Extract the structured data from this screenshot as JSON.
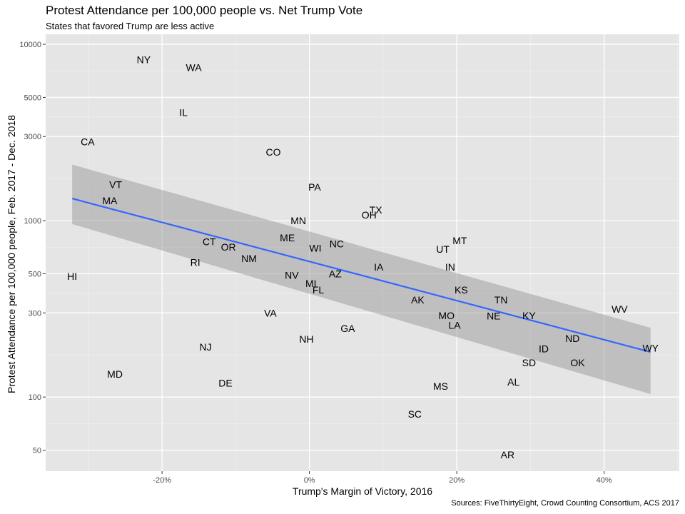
{
  "chart_data": {
    "type": "scatter",
    "title": "Protest Attendance per 100,000 people vs. Net Trump Vote",
    "subtitle": "States that favored Trump are less active",
    "xlabel": "Trump's Margin of Victory, 2016",
    "ylabel": "Protest Attendance per 100,000 people, Feb. 2017 - Dec. 2018",
    "caption": "Sources: FiveThirtyEight, Crowd Counting Consortium, ACS 2017",
    "x_scale": "linear",
    "y_scale": "log10",
    "xlim": [
      -0.358,
      0.502
    ],
    "ylim": [
      38,
      11400
    ],
    "x_ticks": [
      {
        "value": -0.2,
        "label": "-20%"
      },
      {
        "value": 0.0,
        "label": "0%"
      },
      {
        "value": 0.2,
        "label": "20%"
      },
      {
        "value": 0.4,
        "label": "40%"
      }
    ],
    "y_ticks": [
      {
        "value": 50,
        "label": "50"
      },
      {
        "value": 100,
        "label": "100"
      },
      {
        "value": 300,
        "label": "300"
      },
      {
        "value": 500,
        "label": "500"
      },
      {
        "value": 1000,
        "label": "1000"
      },
      {
        "value": 3000,
        "label": "3000"
      },
      {
        "value": 5000,
        "label": "5000"
      },
      {
        "value": 10000,
        "label": "10000"
      }
    ],
    "grid": true,
    "panel_background": "#e5e5e5",
    "points": [
      {
        "label": "NY",
        "x": -0.225,
        "y": 8200
      },
      {
        "label": "WA",
        "x": -0.157,
        "y": 7400
      },
      {
        "label": "IL",
        "x": -0.171,
        "y": 4100
      },
      {
        "label": "CA",
        "x": -0.301,
        "y": 2800
      },
      {
        "label": "CO",
        "x": -0.049,
        "y": 2450
      },
      {
        "label": "VT",
        "x": -0.263,
        "y": 1600
      },
      {
        "label": "PA",
        "x": 0.007,
        "y": 1550
      },
      {
        "label": "MA",
        "x": -0.271,
        "y": 1300
      },
      {
        "label": "TX",
        "x": 0.09,
        "y": 1150
      },
      {
        "label": "OH",
        "x": 0.081,
        "y": 1080
      },
      {
        "label": "MN",
        "x": -0.015,
        "y": 1000
      },
      {
        "label": "ME",
        "x": -0.03,
        "y": 800
      },
      {
        "label": "MT",
        "x": 0.204,
        "y": 770
      },
      {
        "label": "CT",
        "x": -0.136,
        "y": 760
      },
      {
        "label": "NC",
        "x": 0.037,
        "y": 740
      },
      {
        "label": "OR",
        "x": -0.11,
        "y": 710
      },
      {
        "label": "WI",
        "x": 0.008,
        "y": 700
      },
      {
        "label": "UT",
        "x": 0.181,
        "y": 690
      },
      {
        "label": "NM",
        "x": -0.082,
        "y": 610
      },
      {
        "label": "RI",
        "x": -0.155,
        "y": 580
      },
      {
        "label": "IA",
        "x": 0.094,
        "y": 545
      },
      {
        "label": "IN",
        "x": 0.191,
        "y": 545
      },
      {
        "label": "AZ",
        "x": 0.035,
        "y": 500
      },
      {
        "label": "NV",
        "x": -0.024,
        "y": 490
      },
      {
        "label": "HI",
        "x": -0.322,
        "y": 485
      },
      {
        "label": "MI",
        "x": 0.002,
        "y": 440
      },
      {
        "label": "FL",
        "x": 0.012,
        "y": 405
      },
      {
        "label": "KS",
        "x": 0.206,
        "y": 405
      },
      {
        "label": "AK",
        "x": 0.147,
        "y": 355
      },
      {
        "label": "TN",
        "x": 0.26,
        "y": 355
      },
      {
        "label": "WV",
        "x": 0.421,
        "y": 315
      },
      {
        "label": "VA",
        "x": -0.053,
        "y": 300
      },
      {
        "label": "KY",
        "x": 0.298,
        "y": 290
      },
      {
        "label": "MO",
        "x": 0.186,
        "y": 290
      },
      {
        "label": "NE",
        "x": 0.25,
        "y": 288
      },
      {
        "label": "LA",
        "x": 0.197,
        "y": 255
      },
      {
        "label": "GA",
        "x": 0.052,
        "y": 245
      },
      {
        "label": "ND",
        "x": 0.357,
        "y": 215
      },
      {
        "label": "NH",
        "x": -0.004,
        "y": 213
      },
      {
        "label": "WY",
        "x": 0.463,
        "y": 190
      },
      {
        "label": "NJ",
        "x": -0.141,
        "y": 192
      },
      {
        "label": "ID",
        "x": 0.318,
        "y": 188
      },
      {
        "label": "SD",
        "x": 0.298,
        "y": 157
      },
      {
        "label": "OK",
        "x": 0.364,
        "y": 157
      },
      {
        "label": "MD",
        "x": -0.264,
        "y": 135
      },
      {
        "label": "AL",
        "x": 0.277,
        "y": 122
      },
      {
        "label": "DE",
        "x": -0.114,
        "y": 120
      },
      {
        "label": "MS",
        "x": 0.178,
        "y": 115
      },
      {
        "label": "SC",
        "x": 0.143,
        "y": 80
      },
      {
        "label": "AR",
        "x": 0.269,
        "y": 47
      }
    ],
    "trend": {
      "method": "linear fit on log10(y)",
      "x": [
        -0.322,
        0.463
      ],
      "y": [
        1335,
        180
      ],
      "ci_upper": [
        2080,
        247
      ],
      "ci_lower": [
        957,
        104
      ],
      "line_color": "#3366ff",
      "band_color": "#999999"
    }
  }
}
